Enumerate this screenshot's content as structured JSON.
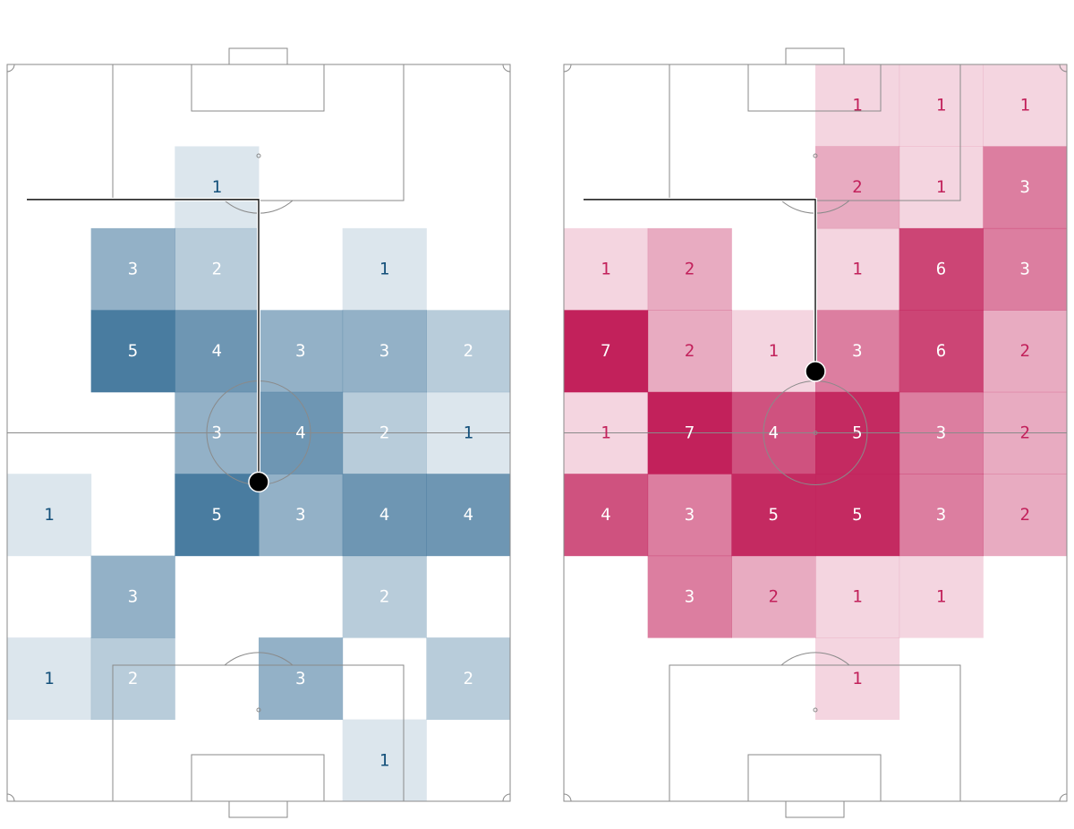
{
  "chart_data": [
    {
      "type": "heatmap",
      "color": "#45799e",
      "light_text_color": "#ffffff",
      "dark_text_color": "#14507a",
      "rows": [
        [
          0,
          0,
          0,
          0,
          0,
          0
        ],
        [
          0,
          0,
          1,
          0,
          0,
          0
        ],
        [
          0,
          3,
          2,
          0,
          1,
          0
        ],
        [
          0,
          5,
          4,
          3,
          3,
          2
        ],
        [
          0,
          0,
          3,
          4,
          2,
          1
        ],
        [
          1,
          0,
          5,
          3,
          4,
          4
        ],
        [
          0,
          3,
          0,
          0,
          2,
          0
        ],
        [
          1,
          2,
          0,
          3,
          0,
          2
        ],
        [
          0,
          0,
          0,
          0,
          1,
          0
        ]
      ],
      "bracket": {
        "horizontal_y_row": 1.65,
        "vertical_x_col": 3.0,
        "dot_row": 5.1
      }
    },
    {
      "type": "heatmap",
      "color": "#c2215b",
      "light_text_color": "#ffffff",
      "dark_text_color": "#c2215b",
      "rows": [
        [
          0,
          0,
          0,
          1,
          1,
          1
        ],
        [
          0,
          0,
          0,
          2,
          1,
          3
        ],
        [
          1,
          2,
          0,
          1,
          6,
          3
        ],
        [
          7,
          2,
          1,
          3,
          6,
          2
        ],
        [
          1,
          7,
          4,
          5,
          3,
          2
        ],
        [
          4,
          3,
          5,
          5,
          3,
          2
        ],
        [
          0,
          3,
          2,
          1,
          1,
          0
        ],
        [
          0,
          0,
          0,
          1,
          0,
          0
        ],
        [
          0,
          0,
          0,
          0,
          0,
          0
        ]
      ],
      "bracket": {
        "horizontal_y_row": 1.65,
        "vertical_x_col": 3.0,
        "dot_row": 3.75
      }
    }
  ]
}
